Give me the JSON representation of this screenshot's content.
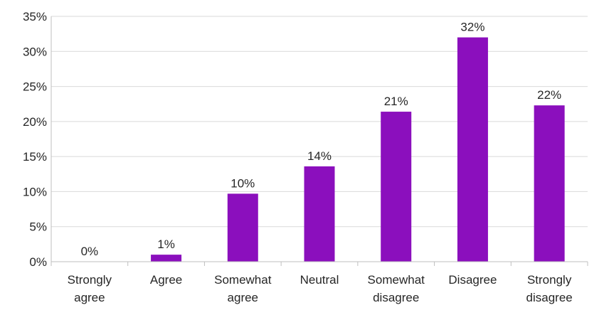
{
  "chart_data": {
    "type": "bar",
    "title": "",
    "xlabel": "",
    "ylabel": "",
    "categories": [
      [
        "Strongly",
        "agree"
      ],
      [
        "Agree"
      ],
      [
        "Somewhat",
        "agree"
      ],
      [
        "Neutral"
      ],
      [
        "Somewhat",
        "disagree"
      ],
      [
        "Disagree"
      ],
      [
        "Strongly",
        "disagree"
      ]
    ],
    "values": [
      0.0,
      1.0,
      9.7,
      13.6,
      21.4,
      32.0,
      22.3
    ],
    "data_labels": [
      "0%",
      "1%",
      "10%",
      "14%",
      "21%",
      "32%",
      "22%"
    ],
    "ylim": [
      0,
      35
    ],
    "y_ticks": [
      0,
      5,
      10,
      15,
      20,
      25,
      30,
      35
    ],
    "y_tick_labels": [
      "0%",
      "5%",
      "10%",
      "15%",
      "20%",
      "25%",
      "30%",
      "35%"
    ],
    "grid": true,
    "legend": "none",
    "bar_color": "#8B0FBD",
    "grid_color": "#D9D9D9",
    "axis_color": "#BFBFBF"
  }
}
